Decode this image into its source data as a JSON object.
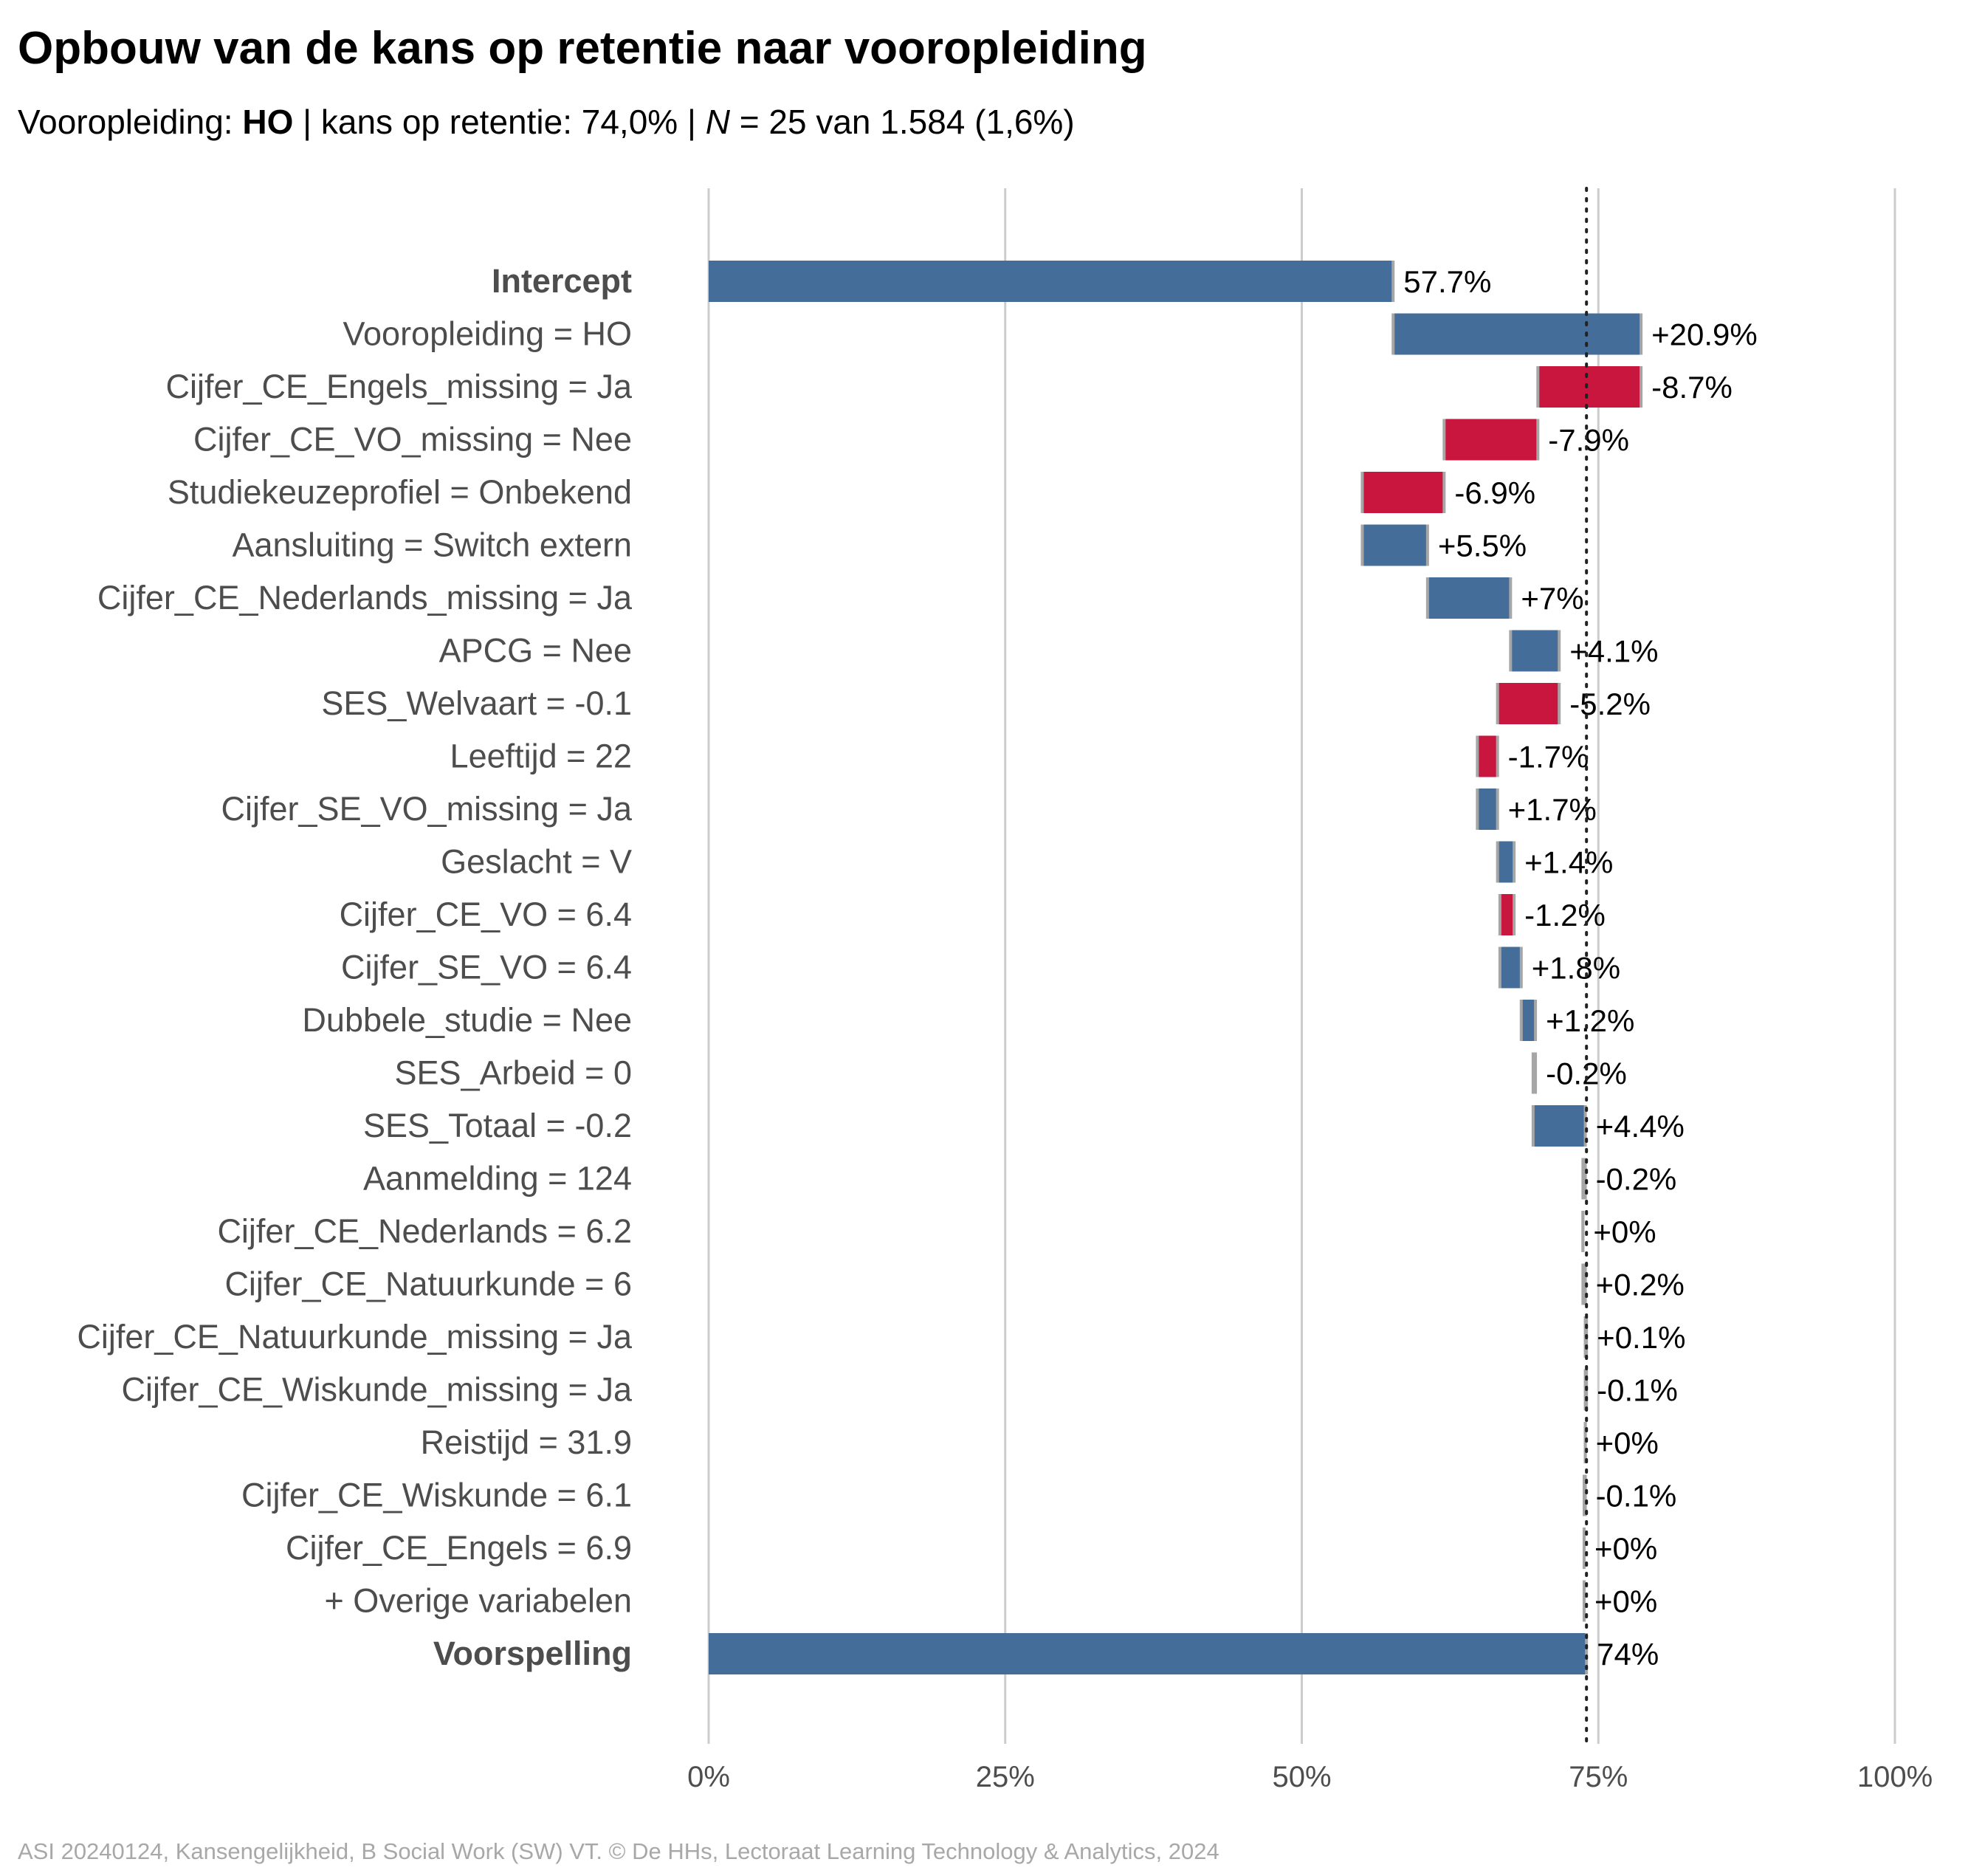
{
  "title": "Opbouw van de kans op retentie naar vooropleiding",
  "subtitle": {
    "label": "Vooropleiding: ",
    "group": "HO",
    "sep1": " | kans op retentie: ",
    "rate": "74,0%",
    "sep2": " | ",
    "n_symbol": "N",
    "n_text": " = 25 van 1.584 (1,6%)"
  },
  "caption": "ASI 20240124, Kansengelijkheid, B Social Work (SW) VT. © De HHs, Lectoraat Learning Technology & Analytics, 2024",
  "colors": {
    "positive": "#456d9a",
    "negative": "#c8163f",
    "connector": "#a6a6a6",
    "grid": "#cccccc",
    "label_text": "#4d4d4d",
    "value_text": "#000000",
    "reference_line": "#222222"
  },
  "chart_data": {
    "type": "waterfall",
    "xlim": [
      0,
      100
    ],
    "x_ticks": [
      0,
      25,
      50,
      75,
      100
    ],
    "x_tick_labels": [
      "0%",
      "25%",
      "50%",
      "75%",
      "100%"
    ],
    "reference_line": 74,
    "grid": true,
    "items": [
      {
        "label": "Intercept",
        "value": 57.7,
        "value_label": "57.7%",
        "kind": "total",
        "bold": true
      },
      {
        "label": "Vooropleiding = HO",
        "value": 20.9,
        "value_label": "+20.9%"
      },
      {
        "label": "Cijfer_CE_Engels_missing = Ja",
        "value": -8.7,
        "value_label": "-8.7%"
      },
      {
        "label": "Cijfer_CE_VO_missing = Nee",
        "value": -7.9,
        "value_label": "-7.9%"
      },
      {
        "label": "Studiekeuzeprofiel = Onbekend",
        "value": -6.9,
        "value_label": "-6.9%"
      },
      {
        "label": "Aansluiting = Switch extern",
        "value": 5.5,
        "value_label": "+5.5%"
      },
      {
        "label": "Cijfer_CE_Nederlands_missing = Ja",
        "value": 7.0,
        "value_label": "+7%"
      },
      {
        "label": "APCG = Nee",
        "value": 4.1,
        "value_label": "+4.1%"
      },
      {
        "label": "SES_Welvaart = -0.1",
        "value": -5.2,
        "value_label": "-5.2%"
      },
      {
        "label": "Leeftijd = 22",
        "value": -1.7,
        "value_label": "-1.7%"
      },
      {
        "label": "Cijfer_SE_VO_missing = Ja",
        "value": 1.7,
        "value_label": "+1.7%"
      },
      {
        "label": "Geslacht = V",
        "value": 1.4,
        "value_label": "+1.4%"
      },
      {
        "label": "Cijfer_CE_VO = 6.4",
        "value": -1.2,
        "value_label": "-1.2%"
      },
      {
        "label": "Cijfer_SE_VO = 6.4",
        "value": 1.8,
        "value_label": "+1.8%"
      },
      {
        "label": "Dubbele_studie = Nee",
        "value": 1.2,
        "value_label": "+1.2%"
      },
      {
        "label": "SES_Arbeid = 0",
        "value": -0.2,
        "value_label": "-0.2%"
      },
      {
        "label": "SES_Totaal = -0.2",
        "value": 4.4,
        "value_label": "+4.4%"
      },
      {
        "label": "Aanmelding = 124",
        "value": -0.2,
        "value_label": "-0.2%"
      },
      {
        "label": "Cijfer_CE_Nederlands = 6.2",
        "value": 0.0,
        "value_label": "+0%"
      },
      {
        "label": "Cijfer_CE_Natuurkunde = 6",
        "value": 0.2,
        "value_label": "+0.2%"
      },
      {
        "label": "Cijfer_CE_Natuurkunde_missing = Ja",
        "value": 0.1,
        "value_label": "+0.1%"
      },
      {
        "label": "Cijfer_CE_Wiskunde_missing = Ja",
        "value": -0.1,
        "value_label": "-0.1%"
      },
      {
        "label": "Reistijd = 31.9",
        "value": 0.0,
        "value_label": "+0%"
      },
      {
        "label": "Cijfer_CE_Wiskunde = 6.1",
        "value": -0.1,
        "value_label": "-0.1%"
      },
      {
        "label": "Cijfer_CE_Engels = 6.9",
        "value": 0.0,
        "value_label": "+0%"
      },
      {
        "label": "+ Overige variabelen",
        "value": 0.0,
        "value_label": "+0%"
      },
      {
        "label": "Voorspelling",
        "value": 74.0,
        "value_label": "74%",
        "kind": "total",
        "bold": true
      }
    ]
  }
}
